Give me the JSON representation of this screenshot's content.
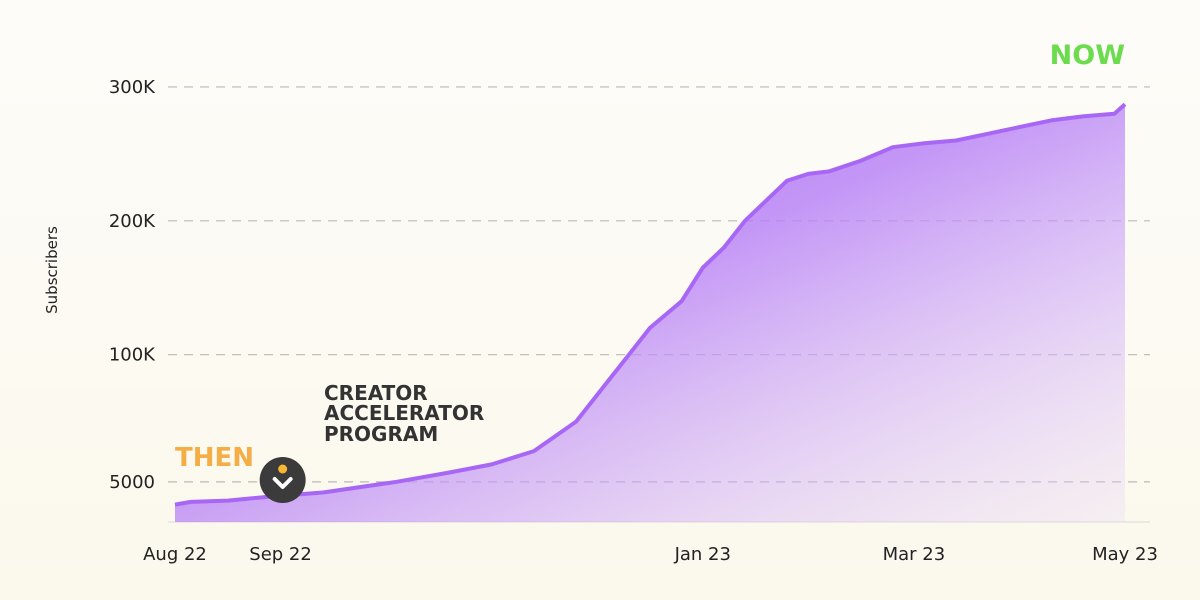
{
  "chart_data": {
    "type": "area",
    "ylabel": "Subscribers",
    "y_ticks": [
      "5000",
      "100K",
      "200K",
      "300K"
    ],
    "y_tick_values": [
      5000,
      100000,
      200000,
      300000
    ],
    "x_ticks": [
      "Aug 22",
      "Sep 22",
      "Jan 23",
      "Mar 23",
      "May 23"
    ],
    "x_tick_months": [
      0,
      1,
      5,
      7,
      9
    ],
    "ylim": [
      -25000,
      350000
    ],
    "grid": "dashed horizontal",
    "series": [
      {
        "points": [
          [
            0.0,
            -12000
          ],
          [
            0.15,
            -10000
          ],
          [
            0.5,
            -9000
          ],
          [
            0.9,
            -6000
          ],
          [
            1.4,
            -3000
          ],
          [
            2.1,
            5000
          ],
          [
            2.6,
            12000
          ],
          [
            3.0,
            18000
          ],
          [
            3.4,
            28000
          ],
          [
            3.8,
            50000
          ],
          [
            4.1,
            80000
          ],
          [
            4.3,
            100000
          ],
          [
            4.5,
            120000
          ],
          [
            4.8,
            140000
          ],
          [
            5.0,
            165000
          ],
          [
            5.2,
            180000
          ],
          [
            5.4,
            200000
          ],
          [
            5.6,
            215000
          ],
          [
            5.8,
            230000
          ],
          [
            6.0,
            235000
          ],
          [
            6.2,
            237000
          ],
          [
            6.5,
            245000
          ],
          [
            6.8,
            255000
          ],
          [
            7.1,
            258000
          ],
          [
            7.4,
            260000
          ],
          [
            7.7,
            265000
          ],
          [
            8.0,
            270000
          ],
          [
            8.3,
            275000
          ],
          [
            8.6,
            278000
          ],
          [
            8.9,
            280000
          ],
          [
            9.0,
            287000
          ]
        ],
        "color": "#a866f5"
      }
    ],
    "annotations": {
      "then": {
        "text": "THEN",
        "color": "#f5ad45"
      },
      "now": {
        "text": "NOW",
        "color": "#6bdc4d"
      },
      "milestone": {
        "lines": [
          "CREATOR",
          "ACCELERATOR",
          "PROGRAM"
        ],
        "month": 1.02,
        "marker": "chevron-down-icon"
      }
    }
  }
}
